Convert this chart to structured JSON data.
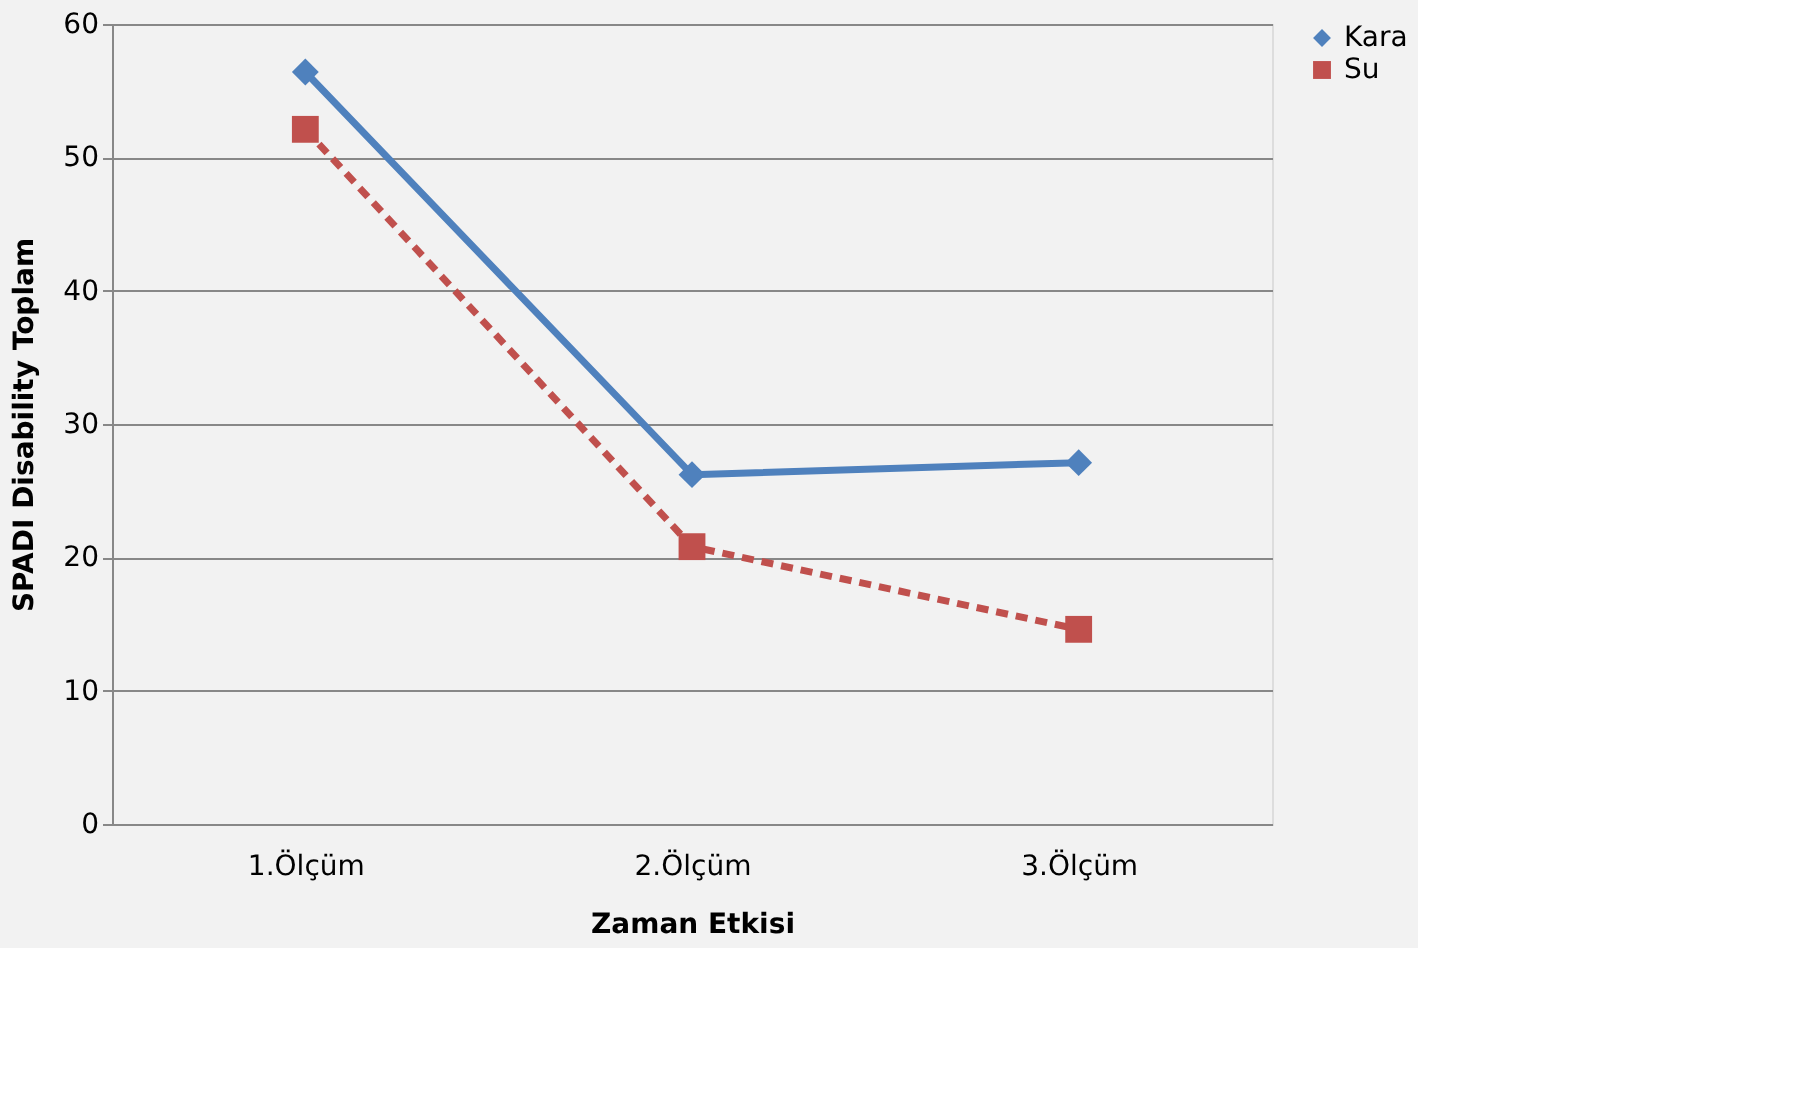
{
  "chart_data": {
    "type": "line",
    "xlabel": "Zaman Etkisi",
    "ylabel": "SPADI Disability Toplam",
    "categories": [
      "1.Ölçüm",
      "2.Ölçüm",
      "3.Ölçüm"
    ],
    "series": [
      {
        "name": "Kara",
        "color": "#4f81bd",
        "values": [
          56.4,
          26.2,
          27.1
        ],
        "marker": "diamond",
        "line_style": "solid"
      },
      {
        "name": "Su",
        "color": "#c0504d",
        "values": [
          52.1,
          20.8,
          14.6
        ],
        "marker": "square",
        "line_style": "dashed"
      }
    ],
    "ylim": [
      0,
      60
    ],
    "yticks": [
      0,
      10,
      20,
      30,
      40,
      50,
      60
    ],
    "grid": "y",
    "legend": "right"
  }
}
